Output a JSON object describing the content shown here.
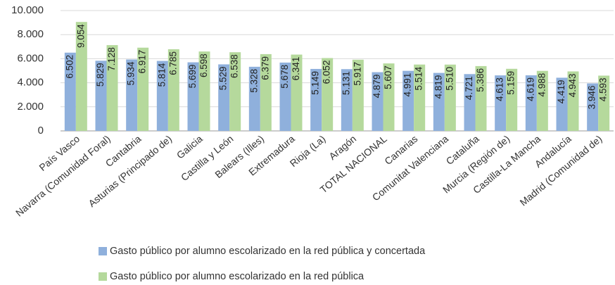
{
  "chart_data": {
    "type": "bar",
    "categories": [
      "País Vasco",
      "Navarra (Comunidad Foral)",
      "Cantabria",
      "Asturias (Principado de)",
      "Galicia",
      "Castilla y León",
      "Balears (Illes)",
      "Extremadura",
      "Rioja (La)",
      "Aragón",
      "TOTAL NACIONAL",
      "Canarias",
      "Comunitat Valenciana",
      "Cataluña",
      "Murcia (Región de)",
      "Castilla-La Mancha",
      "Andalucía",
      "Madrid (Comunidad de)"
    ],
    "series": [
      {
        "name": "Gasto público por alumno escolarizado en la red pública y concertada",
        "color": "#8fb0dc",
        "values": [
          6502,
          5829,
          5934,
          5814,
          5699,
          5529,
          5328,
          5678,
          5149,
          5131,
          4879,
          4991,
          4819,
          4721,
          4613,
          4619,
          4419,
          3946
        ],
        "value_labels": [
          "6.502",
          "5.829",
          "5.934",
          "5.814",
          "5.699",
          "5.529",
          "5.328",
          "5.678",
          "5.149",
          "5.131",
          "4.879",
          "4.991",
          "4.819",
          "4.721",
          "4.613",
          "4.619",
          "4.419",
          "3.946"
        ]
      },
      {
        "name": "Gasto público por alumno escolarizado en la red pública",
        "color": "#b5d99c",
        "values": [
          9054,
          7128,
          6917,
          6785,
          6598,
          6538,
          6379,
          6341,
          6052,
          5917,
          5607,
          5514,
          5510,
          5386,
          5159,
          4988,
          4943,
          4593
        ],
        "value_labels": [
          "9.054",
          "7.128",
          "6.917",
          "6.785",
          "6.598",
          "6.538",
          "6.379",
          "6.341",
          "6.052",
          "5.917",
          "5.607",
          "5.514",
          "5.510",
          "5.386",
          "5.159",
          "4.988",
          "4.943",
          "4.593"
        ]
      }
    ],
    "ylim": [
      0,
      10000
    ],
    "yticks": [
      0,
      {
        "value": 2000,
        "label": "2.000"
      },
      {
        "value": 4000,
        "label": "4.000"
      },
      {
        "value": 6000,
        "label": "6.000"
      },
      {
        "value": 8000,
        "label": "8.000"
      },
      {
        "value": 10000,
        "label": "10.000"
      }
    ],
    "grid": true
  }
}
